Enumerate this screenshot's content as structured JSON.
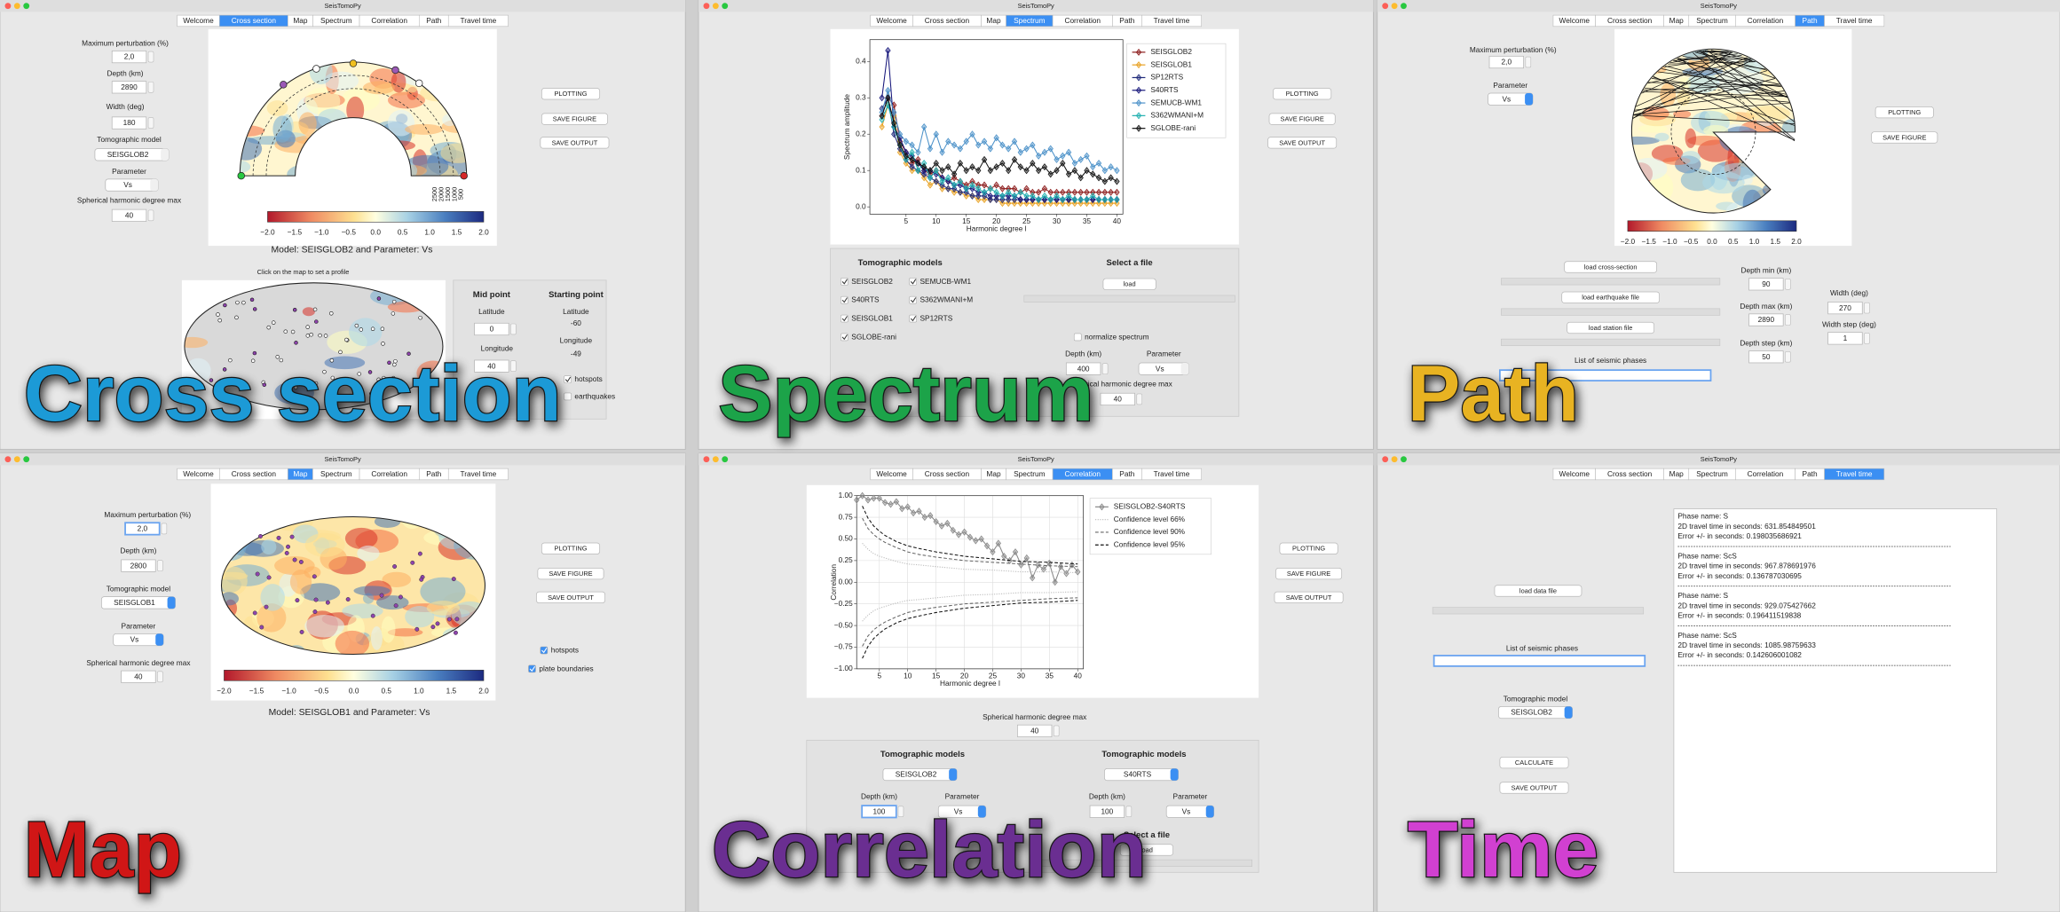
{
  "window_title": "SeisTomoPy",
  "tabs": [
    "Welcome",
    "Cross section",
    "Map",
    "Spectrum",
    "Correlation",
    "Path",
    "Travel time"
  ],
  "buttons": {
    "plotting": "PLOTTING",
    "save_figure": "SAVE FIGURE",
    "save_output": "SAVE OUTPUT"
  },
  "cross_section": {
    "overlay_label": "Cross section",
    "max_perturbation_label": "Maximum perturbation (%)",
    "max_perturbation": "2,0",
    "depth_label": "Depth (km)",
    "depth": "2890",
    "width_label": "Width (deg)",
    "width": "180",
    "model_label": "Tomographic model",
    "model": "SEISGLOB2",
    "parameter_label": "Parameter",
    "parameter": "Vs",
    "degree_label": "Spherical harmonic degree max",
    "degree": "40",
    "colorbar_ticks": [
      "−2.0",
      "−1.5",
      "−1.0",
      "−0.5",
      "0.0",
      "0.5",
      "1.0",
      "1.5",
      "2.0"
    ],
    "depth_ticks": [
      "2500",
      "2000",
      "1500",
      "1000",
      "500"
    ],
    "caption": "Model: SEISGLOB2 and Parameter: Vs",
    "map_hint": "Click on the map to set a profile",
    "mid_point": {
      "title": "Mid point",
      "latitude_label": "Latitude",
      "latitude": "0",
      "longitude_label": "Longitude",
      "longitude": "40"
    },
    "starting_point": {
      "title": "Starting point",
      "latitude_label": "Latitude",
      "latitude": "-60",
      "longitude_label": "Longitude",
      "longitude": "-49"
    },
    "checkboxes": [
      "hotspots",
      "earthquakes"
    ]
  },
  "spectrum": {
    "overlay_label": "Spectrum",
    "chart": {
      "type": "line",
      "xlabel": "Harmonic degree l",
      "ylabel": "Spectrum amplitude",
      "xlim": [
        -1,
        41
      ],
      "ylim": [
        -0.02,
        0.46
      ],
      "grid": false,
      "xticks": [
        5,
        10,
        15,
        20,
        25,
        30,
        35,
        40
      ],
      "yticks": [
        {
          "value": 0,
          "label": "0.0"
        },
        0.1,
        0.2,
        0.3,
        0.4
      ],
      "x": [
        1,
        2,
        3,
        4,
        5,
        6,
        7,
        8,
        9,
        10,
        11,
        12,
        13,
        14,
        15,
        16,
        17,
        18,
        19,
        20,
        21,
        22,
        23,
        24,
        25,
        26,
        27,
        28,
        29,
        30,
        31,
        32,
        33,
        34,
        35,
        36,
        37,
        38,
        39,
        40
      ],
      "series": [
        {
          "name": "SEISGLOB2",
          "color": "#8b1a1a",
          "marker": "diamond",
          "values": [
            0.25,
            0.3,
            0.28,
            0.18,
            0.15,
            0.12,
            0.13,
            0.1,
            0.09,
            0.1,
            0.08,
            0.07,
            0.08,
            0.07,
            0.06,
            0.07,
            0.06,
            0.06,
            0.05,
            0.06,
            0.05,
            0.05,
            0.05,
            0.04,
            0.05,
            0.04,
            0.04,
            0.05,
            0.04,
            0.04,
            0.04,
            0.04,
            0.04,
            0.04,
            0.04,
            0.04,
            0.04,
            0.04,
            0.04,
            0.04
          ]
        },
        {
          "name": "SEISGLOB1",
          "color": "#e8a020",
          "marker": "diamond",
          "values": [
            0.22,
            0.28,
            0.25,
            0.15,
            0.12,
            0.1,
            0.1,
            0.08,
            0.06,
            0.07,
            0.05,
            0.05,
            0.04,
            0.04,
            0.03,
            0.03,
            0.02,
            0.02,
            0.02,
            0.02,
            0.01,
            0.01,
            0.01,
            0.01,
            0.01,
            0.01,
            0.01,
            0.01,
            0.01,
            0.01,
            0.01,
            0.01,
            0.01,
            0.01,
            0.01,
            0.01,
            0.01,
            0.01,
            0.01,
            0.01
          ]
        },
        {
          "name": "SP12RTS",
          "color": "#1f2a7a",
          "marker": "diamond",
          "values": [
            0.27,
            0.3,
            0.2,
            0.16,
            0.13,
            0.11,
            0.1,
            0.09,
            0.08,
            0.07,
            0.06,
            0.05,
            0.05,
            0.04,
            0.04,
            0.03,
            0.03,
            0.03,
            0.02,
            0.02,
            0.02,
            0.02,
            0.02,
            0.02,
            0.02,
            0.02,
            0.02,
            0.02,
            0.02,
            0.02,
            0.02,
            0.02,
            0.02,
            0.02,
            0.02,
            0.02,
            0.02,
            0.02,
            0.02,
            0.02
          ]
        },
        {
          "name": "S40RTS",
          "color": "#15157a",
          "marker": "diamond",
          "values": [
            0.3,
            0.43,
            0.22,
            0.19,
            0.15,
            0.14,
            0.12,
            0.1,
            0.1,
            0.09,
            0.08,
            0.07,
            0.06,
            0.06,
            0.05,
            0.05,
            0.04,
            0.04,
            0.03,
            0.03,
            0.03,
            0.03,
            0.03,
            0.02,
            0.02,
            0.02,
            0.02,
            0.02,
            0.02,
            0.02,
            0.02,
            0.02,
            0.02,
            0.02,
            0.02,
            0.02,
            0.02,
            0.02,
            0.02,
            0.02
          ]
        },
        {
          "name": "SEMUCB-WM1",
          "color": "#4a90c8",
          "marker": "diamond",
          "values": [
            0.26,
            0.32,
            0.26,
            0.2,
            0.18,
            0.17,
            0.15,
            0.22,
            0.16,
            0.2,
            0.15,
            0.18,
            0.17,
            0.16,
            0.18,
            0.2,
            0.17,
            0.18,
            0.16,
            0.19,
            0.17,
            0.16,
            0.18,
            0.15,
            0.16,
            0.17,
            0.14,
            0.15,
            0.16,
            0.13,
            0.14,
            0.15,
            0.12,
            0.13,
            0.14,
            0.11,
            0.12,
            0.1,
            0.11,
            0.1
          ]
        },
        {
          "name": "S362WMANI+M",
          "color": "#20b0b0",
          "marker": "diamond",
          "values": [
            0.24,
            0.28,
            0.22,
            0.17,
            0.13,
            0.15,
            0.1,
            0.12,
            0.08,
            0.1,
            0.07,
            0.08,
            0.06,
            0.07,
            0.05,
            0.06,
            0.05,
            0.04,
            0.05,
            0.04,
            0.03,
            0.04,
            0.03,
            0.04,
            0.03,
            0.03,
            0.02,
            0.03,
            0.02,
            0.03,
            0.02,
            0.03,
            0.02,
            0.02,
            0.02,
            0.03,
            0.02,
            0.02,
            0.02,
            0.02
          ]
        },
        {
          "name": "SGLOBE-rani",
          "color": "#111111",
          "marker": "diamond",
          "values": [
            0.25,
            0.3,
            0.23,
            0.17,
            0.14,
            0.13,
            0.12,
            0.11,
            0.1,
            0.12,
            0.1,
            0.11,
            0.09,
            0.12,
            0.1,
            0.11,
            0.1,
            0.13,
            0.1,
            0.11,
            0.12,
            0.1,
            0.13,
            0.11,
            0.1,
            0.12,
            0.1,
            0.11,
            0.09,
            0.1,
            0.12,
            0.09,
            0.1,
            0.08,
            0.1,
            0.09,
            0.08,
            0.07,
            0.08,
            0.07
          ]
        }
      ]
    },
    "models_title": "Tomographic models",
    "models": [
      "SEISGLOB2",
      "S40RTS",
      "SEISGLOB1",
      "SGLOBE-rani",
      "SEMUCB-WM1",
      "S362WMANI+M",
      "SP12RTS"
    ],
    "file_title": "Select a file",
    "load": "load",
    "normalize": "normalize spectrum",
    "depth_label": "Depth (km)",
    "depth": "400",
    "parameter_label": "Parameter",
    "parameter": "Vs",
    "degree_label": "Spherical harmonic degree max",
    "degree": "40"
  },
  "path": {
    "overlay_label": "Path",
    "max_perturbation_label": "Maximum perturbation (%)",
    "max_perturbation": "2,0",
    "parameter_label": "Parameter",
    "parameter": "Vs",
    "colorbar_ticks": [
      "−2.0",
      "−1.5",
      "−1.0",
      "−0.5",
      "0.0",
      "0.5",
      "1.0",
      "1.5",
      "2.0"
    ],
    "load_cross_section": "load cross-section",
    "load_earthquake": "load earthquake file",
    "load_station": "load station file",
    "phases_label": "List of seismic phases",
    "depth_min_label": "Depth min (km)",
    "depth_min": "90",
    "depth_max_label": "Depth max (km)",
    "depth_max": "2890",
    "depth_step_label": "Depth step (km)",
    "depth_step": "50",
    "width_label": "Width (deg)",
    "width": "270",
    "width_step_label": "Width step (deg)",
    "width_step": "1"
  },
  "map": {
    "overlay_label": "Map",
    "max_perturbation_label": "Maximum perturbation (%)",
    "max_perturbation": "2,0",
    "depth_label": "Depth (km)",
    "depth": "2800",
    "model_label": "Tomographic model",
    "model": "SEISGLOB1",
    "parameter_label": "Parameter",
    "parameter": "Vs",
    "degree_label": "Spherical harmonic degree max",
    "degree": "40",
    "colorbar_ticks": [
      "−2.0",
      "−1.5",
      "−1.0",
      "−0.5",
      "0.0",
      "0.5",
      "1.0",
      "1.5",
      "2.0"
    ],
    "caption": "Model: SEISGLOB1 and Parameter: Vs",
    "checkboxes": [
      "hotspots",
      "plate boundaries"
    ]
  },
  "correlation": {
    "overlay_label": "Correlation",
    "chart": {
      "type": "line",
      "xlabel": "Harmonic degree l",
      "ylabel": "Correlation",
      "xlim": [
        1,
        41
      ],
      "ylim": [
        -1,
        1
      ],
      "grid": true,
      "xticks": [
        5,
        10,
        15,
        20,
        25,
        30,
        35,
        40
      ],
      "yticks": [
        {
          "value": 1,
          "label": "1.00"
        },
        0.75,
        {
          "value": 0.5,
          "label": "0.50"
        },
        0.25,
        {
          "value": 0,
          "label": "0.00"
        },
        {
          "value": -0.25,
          "label": "−0.25"
        },
        {
          "value": -0.5,
          "label": "−0.50"
        },
        {
          "value": -0.75,
          "label": "−0.75"
        },
        {
          "value": -1,
          "label": "−1.00"
        }
      ],
      "series": [
        {
          "name": "SEISGLOB2-S40RTS",
          "color": "#888888",
          "marker": "diamond",
          "x": [
            1,
            2,
            3,
            4,
            5,
            6,
            7,
            8,
            9,
            10,
            11,
            12,
            13,
            14,
            15,
            16,
            17,
            18,
            19,
            20,
            21,
            22,
            23,
            24,
            25,
            26,
            27,
            28,
            29,
            30,
            31,
            32,
            33,
            34,
            35,
            36,
            37,
            38,
            39,
            40
          ],
          "values": [
            0.95,
            1.0,
            0.95,
            0.97,
            0.97,
            0.92,
            0.9,
            0.93,
            0.85,
            0.87,
            0.8,
            0.82,
            0.75,
            0.77,
            0.7,
            0.65,
            0.68,
            0.6,
            0.55,
            0.58,
            0.52,
            0.48,
            0.5,
            0.42,
            0.35,
            0.45,
            0.3,
            0.25,
            0.35,
            0.2,
            0.28,
            0.05,
            0.2,
            0.15,
            0.22,
            0.0,
            0.18,
            0.1,
            0.2,
            0.12
          ]
        },
        {
          "name": "Confidence level 66%",
          "color": "#bbbbbb",
          "dash": "dotted",
          "x": [
            2,
            3,
            4,
            5,
            6,
            8,
            10,
            12,
            15,
            20,
            25,
            30,
            35,
            40
          ],
          "values": [
            0.45,
            0.38,
            0.33,
            0.3,
            0.28,
            0.24,
            0.21,
            0.2,
            0.18,
            0.15,
            0.14,
            0.12,
            0.12,
            0.11
          ],
          "lower_values": [
            -0.45,
            -0.38,
            -0.33,
            -0.3,
            -0.28,
            -0.24,
            -0.21,
            -0.2,
            -0.18,
            -0.15,
            -0.14,
            -0.12,
            -0.12,
            -0.11
          ]
        },
        {
          "name": "Confidence level 90%",
          "color": "#666666",
          "dash": "dashed",
          "x": [
            2,
            3,
            4,
            5,
            6,
            8,
            10,
            12,
            15,
            20,
            25,
            30,
            35,
            40
          ],
          "values": [
            0.74,
            0.62,
            0.55,
            0.5,
            0.46,
            0.4,
            0.35,
            0.32,
            0.29,
            0.25,
            0.23,
            0.21,
            0.19,
            0.18
          ],
          "lower_values": [
            -0.74,
            -0.62,
            -0.55,
            -0.5,
            -0.46,
            -0.4,
            -0.35,
            -0.32,
            -0.29,
            -0.25,
            -0.23,
            -0.21,
            -0.19,
            -0.18
          ]
        },
        {
          "name": "Confidence level 95%",
          "color": "#111111",
          "dash": "dashed",
          "x": [
            2,
            3,
            4,
            5,
            6,
            8,
            10,
            12,
            15,
            20,
            25,
            30,
            35,
            40
          ],
          "values": [
            0.88,
            0.74,
            0.65,
            0.59,
            0.54,
            0.47,
            0.42,
            0.39,
            0.35,
            0.3,
            0.27,
            0.24,
            0.23,
            0.21
          ],
          "lower_values": [
            -0.88,
            -0.74,
            -0.65,
            -0.59,
            -0.54,
            -0.47,
            -0.42,
            -0.39,
            -0.35,
            -0.3,
            -0.27,
            -0.24,
            -0.23,
            -0.21
          ]
        }
      ]
    },
    "degree_label": "Spherical harmonic degree max",
    "degree": "40",
    "left": {
      "title": "Tomographic models",
      "model": "SEISGLOB2",
      "depth_label": "Depth (km)",
      "depth": "100",
      "parameter_label": "Parameter",
      "parameter": "Vs"
    },
    "right": {
      "title": "Tomographic models",
      "model": "S40RTS",
      "depth_label": "Depth (km)",
      "depth": "100",
      "parameter_label": "Parameter",
      "parameter": "Vs"
    },
    "file_title": "Select a file",
    "load": "load"
  },
  "travel_time": {
    "overlay_label": "Time",
    "load_data": "load data file",
    "phases_label": "List of seismic phases",
    "model_label": "Tomographic model",
    "model": "SEISGLOB2",
    "calculate": "CALCULATE",
    "output": [
      {
        "phase": "Phase name: S",
        "time": "2D travel time in seconds: 631.854849501",
        "error": "Error +/- in seconds: 0.198035686921"
      },
      {
        "phase": "Phase name: ScS",
        "time": "2D travel time in seconds: 967.878691976",
        "error": "Error +/- in seconds: 0.136787030695"
      },
      {
        "phase": "Phase name: S",
        "time": "2D travel time in seconds: 929.075427662",
        "error": "Error +/- in seconds: 0.196411519838"
      },
      {
        "phase": "Phase name: ScS",
        "time": "2D travel time in seconds: 1085.98759633",
        "error": "Error +/- in seconds: 0.142606001082"
      }
    ]
  }
}
